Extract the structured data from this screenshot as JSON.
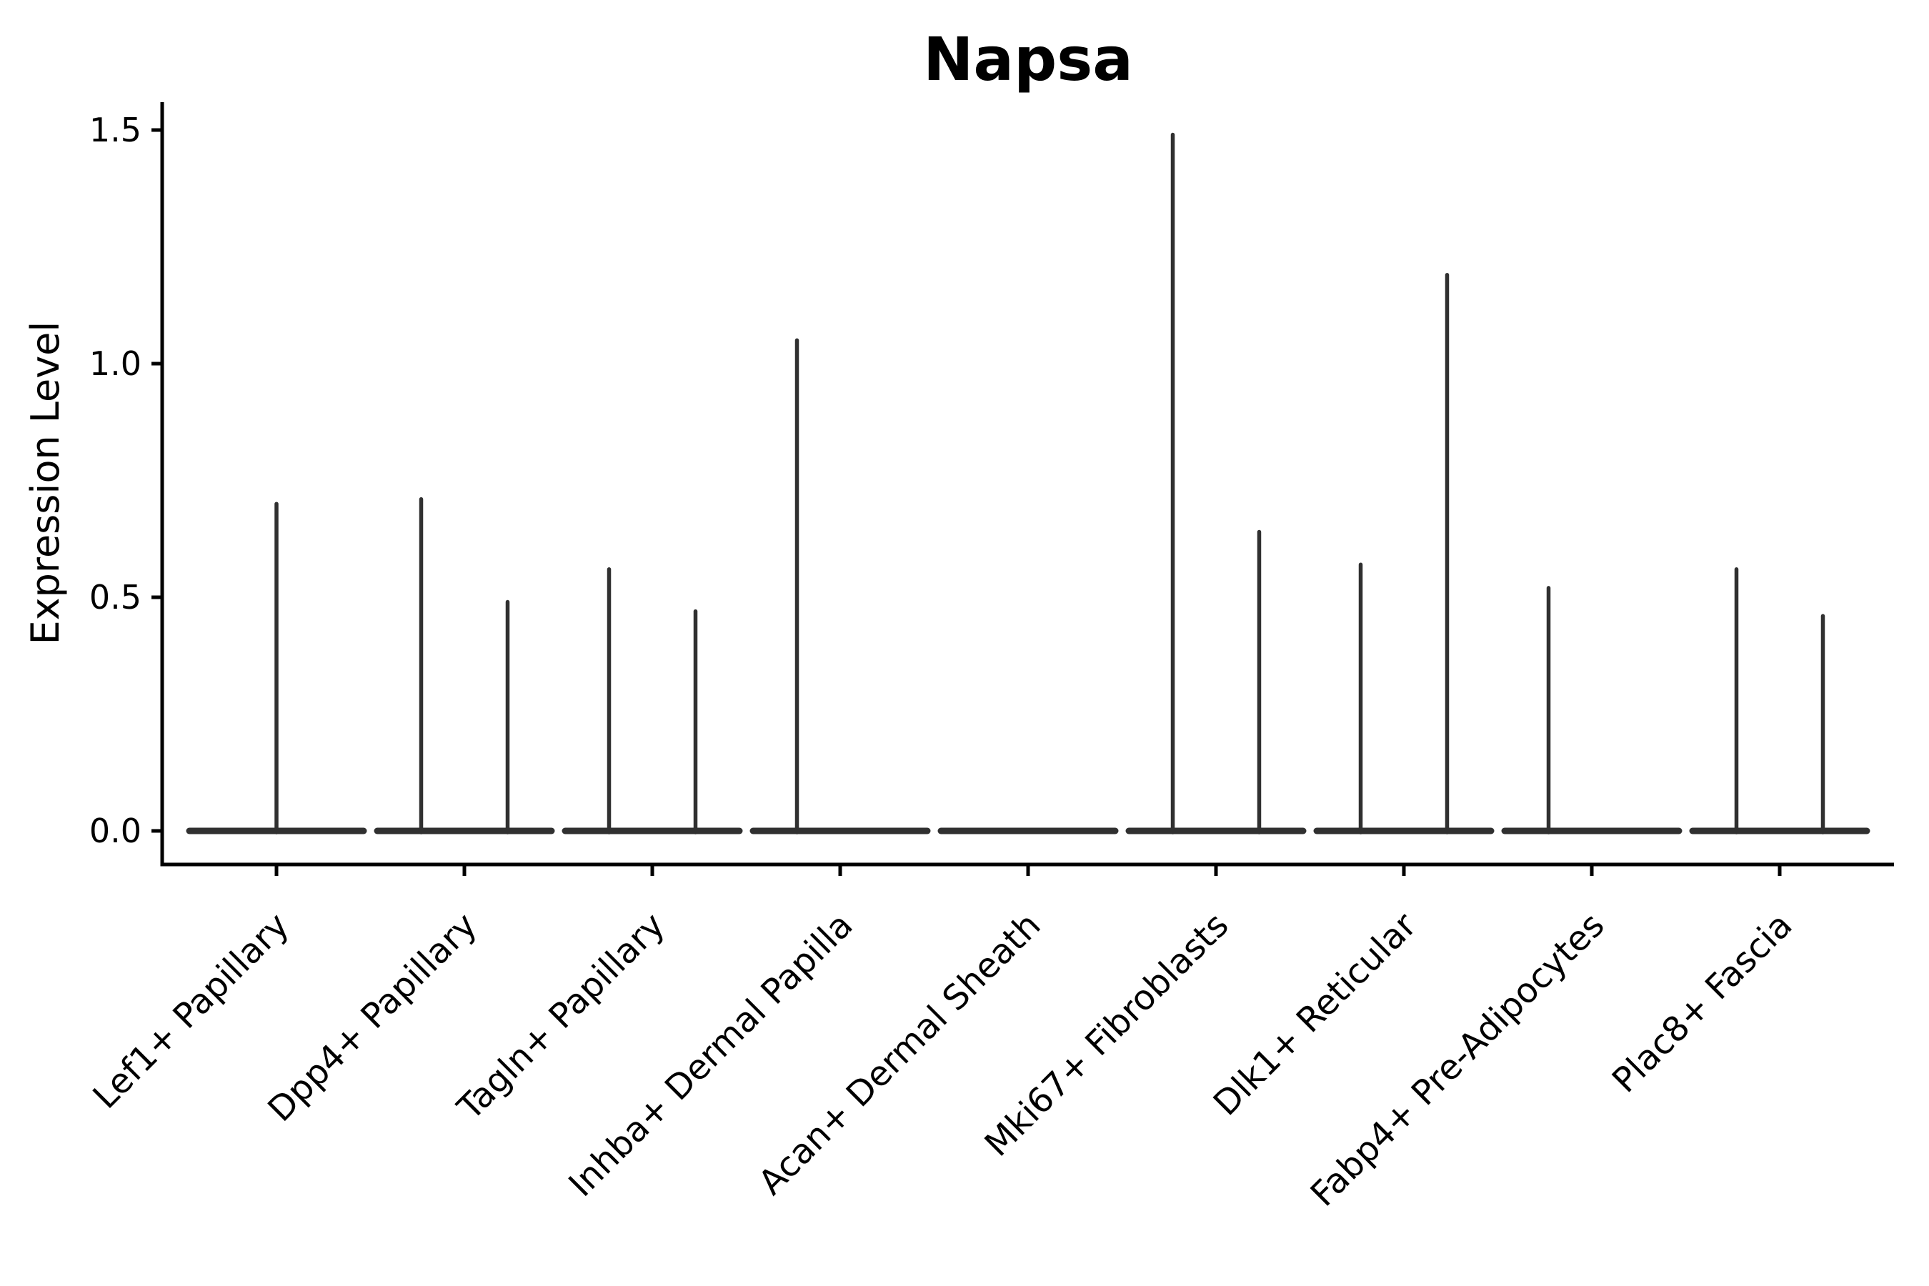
{
  "chart_data": {
    "type": "violin",
    "title": "Napsa",
    "ylabel": "Expression Level",
    "xlabel": "",
    "y_tick_labels": [
      "0.0",
      "0.5",
      "1.0",
      "1.5"
    ],
    "ylim": [
      -0.07,
      1.56
    ],
    "grid": false,
    "legend": "none",
    "style_note": "Seurat-style violin plot; each violin is collapsed flat at 0 expression with a thin vertical spike up to the maximum expression value; some categories contain two side-by-side violins",
    "categories": [
      "Lef1+ Papillary",
      "Dpp4+ Papillary",
      "Tagln+ Papillary",
      "Inhba+ Dermal Papilla",
      "Acan+ Dermal Sheath",
      "Mki67+ Fibroblasts",
      "Dlk1+ Reticular",
      "Fabp4+ Pre-Adipocytes",
      "Plac8+ Fascia"
    ],
    "groups": [
      {
        "label": "Lef1+ Papillary",
        "violins": [
          {
            "offset": 0.0,
            "max": 0.7
          }
        ]
      },
      {
        "label": "Dpp4+ Papillary",
        "violins": [
          {
            "offset": -0.23,
            "max": 0.71
          },
          {
            "offset": 0.23,
            "max": 0.49
          }
        ]
      },
      {
        "label": "Tagln+ Papillary",
        "violins": [
          {
            "offset": -0.23,
            "max": 0.56
          },
          {
            "offset": 0.23,
            "max": 0.47
          }
        ]
      },
      {
        "label": "Inhba+ Dermal Papilla",
        "violins": [
          {
            "offset": -0.23,
            "max": 1.05
          }
        ]
      },
      {
        "label": "Acan+ Dermal Sheath",
        "violins": []
      },
      {
        "label": "Mki67+ Fibroblasts",
        "violins": [
          {
            "offset": -0.23,
            "max": 1.49
          },
          {
            "offset": 0.23,
            "max": 0.64
          }
        ]
      },
      {
        "label": "Dlk1+ Reticular",
        "violins": [
          {
            "offset": -0.23,
            "max": 0.57
          },
          {
            "offset": 0.23,
            "max": 1.19
          }
        ]
      },
      {
        "label": "Fabp4+ Pre-Adipocytes",
        "violins": [
          {
            "offset": -0.23,
            "max": 0.52
          }
        ]
      },
      {
        "label": "Plac8+ Fascia",
        "violins": [
          {
            "offset": -0.23,
            "max": 0.56
          },
          {
            "offset": 0.23,
            "max": 0.46
          }
        ]
      }
    ],
    "colors": {
      "violin_line": "#303030",
      "axis": "#000000",
      "text": "#000000",
      "background": "#ffffff"
    }
  }
}
